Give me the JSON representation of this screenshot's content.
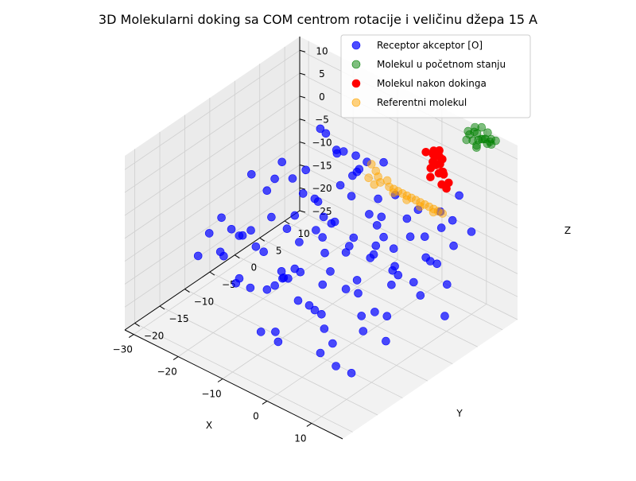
{
  "chart_data": {
    "type": "scatter3d",
    "title": "3D Molekularni doking sa COM centrom rotacije i veličinu džepa 15 A",
    "xlabel": "X",
    "ylabel": "Y",
    "zlabel": "Z",
    "x_ticks": [
      "−30",
      "−20",
      "−10",
      "0",
      "10"
    ],
    "y_ticks": [
      "−20",
      "−15",
      "−10",
      "−5",
      "0",
      "5",
      "10"
    ],
    "z_ticks": [
      "−25",
      "−20",
      "−15",
      "−10",
      "−5",
      "0",
      "5",
      "10"
    ],
    "xlim": [
      -32,
      17
    ],
    "ylim": [
      -22,
      13
    ],
    "zlim": [
      -25,
      13
    ],
    "grid": true,
    "legend_position": "top-right",
    "series": [
      {
        "name": "Receptor akceptor [O]",
        "color": "#0000ff",
        "alpha": 0.7,
        "points": [
          [
            -25,
            -3,
            -14
          ],
          [
            -18,
            8,
            -2
          ],
          [
            -20,
            -18,
            -6
          ],
          [
            -10,
            -10,
            -12
          ],
          [
            -14,
            0,
            -4
          ],
          [
            -6,
            -15,
            -18
          ],
          [
            -3,
            4,
            -10
          ],
          [
            2,
            -8,
            -10
          ],
          [
            -27,
            5,
            -6
          ],
          [
            -22,
            -8,
            -10
          ],
          [
            -15,
            -12,
            -15
          ],
          [
            -8,
            2,
            -2
          ],
          [
            -2,
            -18,
            -16
          ],
          [
            4,
            6,
            -8
          ],
          [
            8,
            -4,
            -6
          ],
          [
            -24,
            10,
            -1
          ],
          [
            -18,
            -2,
            -11
          ],
          [
            -12,
            12,
            -4
          ],
          [
            -5,
            -6,
            -7
          ],
          [
            1,
            -12,
            -13
          ],
          [
            6,
            2,
            -14
          ],
          [
            10,
            -14,
            -20
          ],
          [
            -20,
            3,
            -8
          ],
          [
            -16,
            -14,
            -13
          ],
          [
            -9,
            6,
            2
          ],
          [
            -4,
            -2,
            -8
          ],
          [
            3,
            10,
            -6
          ],
          [
            7,
            -9,
            -16
          ],
          [
            12,
            -2,
            -11
          ],
          [
            -26,
            -6,
            -12
          ],
          [
            -21,
            12,
            -6
          ],
          [
            -13,
            -4,
            -10
          ],
          [
            -7,
            -17,
            -17
          ],
          [
            0,
            0,
            -3
          ],
          [
            5,
            -15,
            -12
          ],
          [
            9,
            4,
            -10
          ],
          [
            -23,
            0,
            -4
          ],
          [
            -17,
            7,
            0
          ],
          [
            -11,
            -8,
            -14
          ],
          [
            -6,
            9,
            -6
          ],
          [
            -1,
            -10,
            -9
          ],
          [
            4,
            -4,
            -17
          ],
          [
            8,
            8,
            -4
          ],
          [
            11,
            -18,
            -15
          ],
          [
            -25,
            8,
            -9
          ],
          [
            -19,
            -10,
            -7
          ],
          [
            -14,
            4,
            -12
          ],
          [
            -8,
            -12,
            -8
          ],
          [
            -3,
            6,
            -14
          ],
          [
            2,
            -2,
            -5
          ],
          [
            7,
            -10,
            -7
          ],
          [
            13,
            2,
            -18
          ],
          [
            -22,
            -14,
            -5
          ],
          [
            -16,
            10,
            -3
          ],
          [
            -10,
            -2,
            -9
          ],
          [
            -5,
            -8,
            -18
          ],
          [
            1,
            12,
            -12
          ],
          [
            6,
            -6,
            -2
          ],
          [
            10,
            -12,
            -9
          ],
          [
            -27,
            2,
            -10
          ],
          [
            -21,
            -4,
            -16
          ],
          [
            -15,
            6,
            -6
          ],
          [
            -9,
            -14,
            -11
          ],
          [
            -4,
            2,
            -4
          ],
          [
            2,
            8,
            -15
          ],
          [
            8,
            -16,
            -13
          ],
          [
            12,
            0,
            -5
          ],
          [
            -24,
            -10,
            -13
          ],
          [
            -18,
            12,
            -9
          ],
          [
            -12,
            0,
            -7
          ],
          [
            -7,
            -6,
            -3
          ],
          [
            -2,
            10,
            -8
          ],
          [
            3,
            -14,
            -19
          ],
          [
            9,
            6,
            -16
          ],
          [
            -26,
            -2,
            -3
          ],
          [
            -20,
            6,
            -12
          ],
          [
            -13,
            -16,
            -9
          ],
          [
            -6,
            4,
            -16
          ],
          [
            0,
            -4,
            -12
          ],
          [
            5,
            12,
            -3
          ],
          [
            11,
            -8,
            -17
          ],
          [
            -23,
            4,
            -15
          ],
          [
            -17,
            -6,
            -5
          ],
          [
            -11,
            10,
            -10
          ],
          [
            -5,
            -12,
            -6
          ],
          [
            1,
            2,
            -17
          ],
          [
            7,
            -2,
            -9
          ],
          [
            -19,
            0,
            -2
          ],
          [
            -14,
            -8,
            -17
          ],
          [
            -8,
            8,
            -11
          ],
          [
            -3,
            -16,
            -4
          ],
          [
            3,
            4,
            -7
          ],
          [
            9,
            -6,
            -14
          ],
          [
            -25,
            12,
            -4
          ],
          [
            -15,
            -2,
            -19
          ],
          [
            -10,
            4,
            0
          ],
          [
            -4,
            -10,
            -15
          ],
          [
            4,
            0,
            -10
          ],
          [
            -21,
            -12,
            -11
          ],
          [
            -12,
            6,
            -16
          ],
          [
            -6,
            -4,
            -13
          ],
          [
            2,
            -8,
            -2
          ],
          [
            6,
            10,
            -12
          ],
          [
            -16,
            -10,
            -8
          ],
          [
            -8,
            -2,
            -5
          ],
          [
            0,
            6,
            -6
          ],
          [
            -26,
            -8,
            -8
          ],
          [
            -13,
            8,
            -3
          ],
          [
            -2,
            -14,
            -10
          ],
          [
            10,
            10,
            -7
          ]
        ]
      },
      {
        "name": "Molekul u početnom stanju",
        "color": "#008000",
        "alpha": 0.5,
        "points": [
          [
            7,
            12,
            12
          ],
          [
            8,
            12.5,
            13
          ],
          [
            9,
            12,
            12.5
          ],
          [
            10,
            12.3,
            11.5
          ],
          [
            8.5,
            11.6,
            11
          ],
          [
            9.5,
            11.5,
            10.5
          ],
          [
            7.5,
            12.8,
            11.5
          ],
          [
            10.5,
            12.8,
            12.8
          ],
          [
            11,
            12.3,
            11
          ],
          [
            8,
            11.4,
            12.2
          ],
          [
            9,
            12.9,
            10.6
          ],
          [
            10,
            11.4,
            12
          ],
          [
            11.5,
            12.6,
            12
          ],
          [
            7.2,
            11.5,
            10.6
          ],
          [
            12,
            12.2,
            11.4
          ],
          [
            8.8,
            13.1,
            12.9
          ],
          [
            9.8,
            11.2,
            10.4
          ],
          [
            10.8,
            13,
            10.8
          ],
          [
            11.3,
            11.6,
            12.7
          ],
          [
            12.3,
            12.8,
            11.9
          ]
        ]
      },
      {
        "name": "Molekul nakon dokinga",
        "color": "#ff0000",
        "alpha": 1.0,
        "points": [
          [
            2,
            8,
            8
          ],
          [
            2.5,
            9,
            7
          ],
          [
            3,
            8.5,
            6
          ],
          [
            3.5,
            9.5,
            5
          ],
          [
            2.2,
            8.8,
            4
          ],
          [
            4,
            8,
            6.5
          ],
          [
            3.8,
            9,
            3.5
          ],
          [
            2.8,
            8.2,
            2.8
          ],
          [
            4.5,
            9.2,
            4
          ],
          [
            5,
            8.5,
            2
          ],
          [
            5.5,
            9,
            1
          ],
          [
            3.2,
            8.5,
            8.5
          ],
          [
            4.8,
            8.8,
            7.2
          ],
          [
            6,
            9,
            2.5
          ],
          [
            3.6,
            8.6,
            5.5
          ],
          [
            4.2,
            9.6,
            3
          ],
          [
            2.6,
            9.2,
            6.5
          ],
          [
            5.2,
            8.2,
            5
          ],
          [
            3,
            9.8,
            7.5
          ],
          [
            4.6,
            8.4,
            8
          ]
        ]
      },
      {
        "name": "Referentni molekul",
        "color": "#ffa500",
        "alpha": 0.5,
        "points": [
          [
            -8,
            6,
            2
          ],
          [
            -7,
            6,
            1
          ],
          [
            -6.5,
            6,
            0
          ],
          [
            -6,
            6,
            -1
          ],
          [
            -7.5,
            5,
            0
          ],
          [
            -6.8,
            5.5,
            -1.5
          ],
          [
            -4,
            6,
            -1
          ],
          [
            -3,
            6,
            -1
          ],
          [
            -2,
            6,
            -1
          ],
          [
            -1,
            6,
            -1
          ],
          [
            0,
            6,
            -1
          ],
          [
            1,
            6,
            -1
          ],
          [
            2,
            6,
            -1
          ],
          [
            3,
            6,
            -1
          ],
          [
            4,
            6,
            -1
          ],
          [
            5,
            6,
            -1
          ],
          [
            6,
            6,
            -1
          ],
          [
            7,
            6,
            -1
          ],
          [
            -5,
            6.5,
            -0.5
          ],
          [
            -2.5,
            5.5,
            -1.2
          ],
          [
            0.5,
            5.5,
            -1.3
          ],
          [
            3.5,
            5.5,
            -1.3
          ],
          [
            6.5,
            5.5,
            -1.1
          ],
          [
            8,
            6,
            -1
          ]
        ]
      }
    ]
  }
}
